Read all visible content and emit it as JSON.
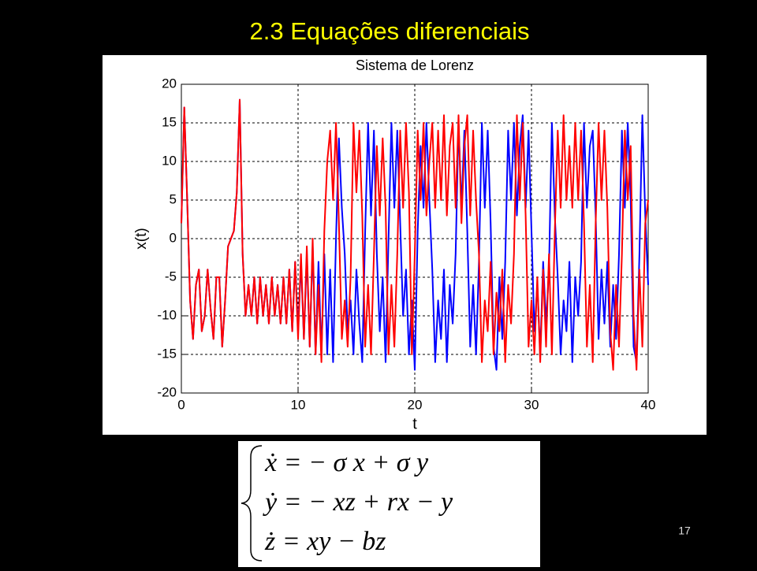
{
  "slide": {
    "title": "2.3 Equações diferenciais",
    "page_number": "17",
    "equations": [
      "ẋ = − σ x + σ y",
      "ẏ = − xz + rx − y",
      "ż = xy − bz"
    ]
  },
  "chart_data": {
    "type": "line",
    "title": "Sistema de Lorenz",
    "x_label": "t",
    "y_label": "x(t)",
    "xlim": [
      0,
      40
    ],
    "xticks": [
      0,
      10,
      20,
      30,
      40
    ],
    "ylim": [
      -20,
      20
    ],
    "yticks": [
      -20,
      -15,
      -10,
      -5,
      0,
      5,
      10,
      15,
      20
    ],
    "grid": true,
    "x": [
      0,
      0.25,
      0.5,
      0.75,
      1,
      1.25,
      1.5,
      1.75,
      2,
      2.25,
      2.5,
      2.75,
      3,
      3.25,
      3.5,
      3.75,
      4,
      4.25,
      4.5,
      4.75,
      5,
      5.25,
      5.5,
      5.75,
      6,
      6.25,
      6.5,
      6.75,
      7,
      7.25,
      7.5,
      7.75,
      8,
      8.25,
      8.5,
      8.75,
      9,
      9.25,
      9.5,
      9.75,
      10,
      10.25,
      10.5,
      10.75,
      11,
      11.25,
      11.5,
      11.75,
      12,
      12.25,
      12.5,
      12.75,
      13,
      13.25,
      13.5,
      13.75,
      14,
      14.25,
      14.5,
      14.75,
      15,
      15.25,
      15.5,
      15.75,
      16,
      16.25,
      16.5,
      16.75,
      17,
      17.25,
      17.5,
      17.75,
      18,
      18.25,
      18.5,
      18.75,
      19,
      19.25,
      19.5,
      19.75,
      20,
      20.25,
      20.5,
      20.75,
      21,
      21.25,
      21.5,
      21.75,
      22,
      22.25,
      22.5,
      22.75,
      23,
      23.25,
      23.5,
      23.75,
      24,
      24.25,
      24.5,
      24.75,
      25,
      25.25,
      25.5,
      25.75,
      26,
      26.25,
      26.5,
      26.75,
      27,
      27.25,
      27.5,
      27.75,
      28,
      28.25,
      28.5,
      28.75,
      29,
      29.25,
      29.5,
      29.75,
      30,
      30.25,
      30.5,
      30.75,
      31,
      31.25,
      31.5,
      31.75,
      32,
      32.25,
      32.5,
      32.75,
      33,
      33.25,
      33.5,
      33.75,
      34,
      34.25,
      34.5,
      34.75,
      35,
      35.25,
      35.5,
      35.75,
      36,
      36.25,
      36.5,
      36.75,
      37,
      37.25,
      37.5,
      37.75,
      38,
      38.25,
      38.5,
      38.75,
      39,
      39.25,
      39.5,
      39.75,
      40
    ],
    "series": [
      {
        "color": "#0000ff",
        "values": [
          2,
          17,
          5,
          -8,
          -13,
          -6,
          -4,
          -12,
          -10,
          -4,
          -9,
          -13,
          -5,
          -5,
          -14,
          -8,
          -1,
          0,
          1,
          6,
          18,
          -2,
          -10,
          -6,
          -10,
          -5,
          -11,
          -5,
          -10,
          -6,
          -11,
          -5,
          -10,
          -6,
          -11,
          -5,
          -11,
          -4,
          -12,
          -3,
          -12,
          -3,
          -13,
          -2,
          -14,
          -1,
          -15,
          -3,
          -15,
          -2,
          -15,
          -4,
          -16,
          0,
          13,
          4,
          -2,
          -12,
          -8,
          -15,
          -4,
          -11,
          -16,
          1,
          15,
          3,
          14,
          -2,
          -12,
          -5,
          -16,
          0,
          15,
          4,
          14,
          2,
          -10,
          -4,
          -15,
          -8,
          -17,
          1,
          12,
          4,
          15,
          5,
          -4,
          -16,
          -8,
          -13,
          -4,
          -16,
          -6,
          -11,
          -2,
          15,
          4,
          14,
          1,
          -14,
          -6,
          -15,
          -3,
          15,
          4,
          14,
          2,
          -14,
          -17,
          -5,
          -13,
          -3,
          14,
          5,
          15,
          3,
          12,
          16,
          4,
          14,
          1,
          -12,
          -6,
          -15,
          -3,
          -11,
          -4,
          15,
          3,
          -5,
          -15,
          -8,
          -12,
          -3,
          -16,
          -5,
          -10,
          -3,
          15,
          4,
          12,
          14,
          3,
          -13,
          -4,
          -11,
          -3,
          -14,
          -6,
          -13,
          -2,
          14,
          4,
          15,
          5,
          -14,
          -16,
          -2,
          16,
          3,
          -6
        ]
      },
      {
        "color": "#ff0000",
        "values": [
          2,
          17,
          5,
          -8,
          -13,
          -6,
          -4,
          -12,
          -10,
          -4,
          -9,
          -13,
          -5,
          -5,
          -14,
          -8,
          -1,
          0,
          1,
          6,
          18,
          -2,
          -10,
          -6,
          -10,
          -5,
          -11,
          -5,
          -10,
          -6,
          -11,
          -5,
          -10,
          -6,
          -11,
          -5,
          -11,
          -4,
          -12,
          -3,
          -13,
          -2,
          -13,
          -1,
          -14,
          0,
          -15,
          -6,
          -16,
          1,
          10,
          14,
          5,
          15,
          2,
          -13,
          -8,
          -14,
          -5,
          15,
          6,
          14,
          3,
          -14,
          -6,
          -15,
          -2,
          12,
          3,
          13,
          4,
          -15,
          -6,
          -14,
          -2,
          14,
          4,
          15,
          6,
          -15,
          -2,
          14,
          5,
          15,
          3,
          10,
          15,
          4,
          14,
          5,
          16,
          3,
          12,
          15,
          4,
          16,
          2,
          12,
          16,
          3,
          14,
          5,
          -2,
          -16,
          -8,
          -12,
          -3,
          -15,
          -7,
          -12,
          -4,
          -16,
          -6,
          -11,
          -2,
          16,
          5,
          15,
          3,
          -14,
          -8,
          -15,
          -5,
          -16,
          -4,
          -14,
          -2,
          -15,
          1,
          14,
          4,
          16,
          5,
          12,
          4,
          15,
          5,
          14,
          2,
          -14,
          -6,
          -16,
          2,
          15,
          5,
          14,
          4,
          -12,
          -17,
          -6,
          -14,
          -2,
          14,
          5,
          12,
          -10,
          -17,
          -4,
          -14,
          2,
          5
        ]
      }
    ]
  }
}
